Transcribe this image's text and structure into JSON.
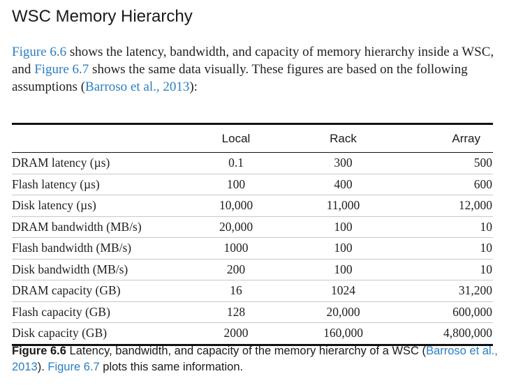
{
  "heading": "WSC Memory Hierarchy",
  "intro": {
    "link1": "Figure 6.6",
    "text1": " shows the latency, bandwidth, and capacity of memory hierarchy inside a WSC, and ",
    "link2": "Figure 6.7",
    "text2": " shows the same data visually. These figures are based on the following assumptions (",
    "link3": "Barroso et al., 2013",
    "text3": "):"
  },
  "table": {
    "columns": [
      "",
      "Local",
      "Rack",
      "Array"
    ],
    "rows": [
      [
        "DRAM latency (µs)",
        "0.1",
        "300",
        "500"
      ],
      [
        "Flash latency (µs)",
        "100",
        "400",
        "600"
      ],
      [
        "Disk latency (µs)",
        "10,000",
        "11,000",
        "12,000"
      ],
      [
        "DRAM bandwidth (MB/s)",
        "20,000",
        "100",
        "10"
      ],
      [
        "Flash bandwidth (MB/s)",
        "1000",
        "100",
        "10"
      ],
      [
        "Disk bandwidth (MB/s)",
        "200",
        "100",
        "10"
      ],
      [
        "DRAM capacity (GB)",
        "16",
        "1024",
        "31,200"
      ],
      [
        "Flash capacity (GB)",
        "128",
        "20,000",
        "600,000"
      ],
      [
        "Disk capacity (GB)",
        "2000",
        "160,000",
        "4,800,000"
      ]
    ]
  },
  "caption": {
    "label": "Figure 6.6",
    "text1": " Latency, bandwidth, and capacity of the memory hierarchy of a WSC (",
    "link1": "Barroso et al., 2013",
    "text2": "). ",
    "link2": "Figure 6.7",
    "text3": " plots this same information."
  },
  "colors": {
    "link": "#2a7ec0",
    "text": "#1a1a1a"
  }
}
